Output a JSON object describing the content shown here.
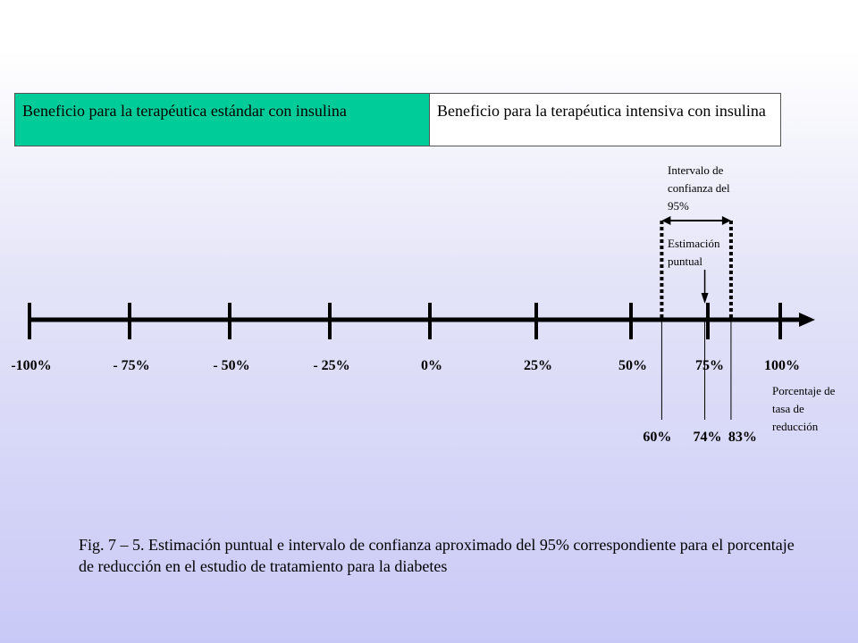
{
  "header": {
    "standard_label": "Beneficio para la terapéutica estándar con insulina",
    "intensive_label": "Beneficio para la terapéutica intensiva con insulina",
    "standard_color": "#00cc99"
  },
  "axis": {
    "ticks": [
      {
        "value": -100,
        "label": "-100%"
      },
      {
        "value": -75,
        "label": "- 75%"
      },
      {
        "value": -50,
        "label": "- 50%"
      },
      {
        "value": -25,
        "label": "- 25%"
      },
      {
        "value": 0,
        "label": "0%"
      },
      {
        "value": 25,
        "label": "25%"
      },
      {
        "value": 50,
        "label": "50%"
      },
      {
        "value": 75,
        "label": "75%"
      },
      {
        "value": 100,
        "label": "100%"
      }
    ],
    "unit_label": "Porcentaje de tasa de reducción"
  },
  "interval": {
    "lower": 60,
    "point": 74,
    "upper": 83,
    "lower_label": "60%",
    "point_label": "74%",
    "upper_label": "83%",
    "ci_label": "Intervalo de confianza del 95%",
    "point_estimate_label": "Estimación puntual"
  },
  "caption": "Fig. 7 – 5. Estimación puntual e intervalo de confianza aproximado del 95% correspondiente para el porcentaje de reducción en el estudio de tratamiento para la diabetes"
}
